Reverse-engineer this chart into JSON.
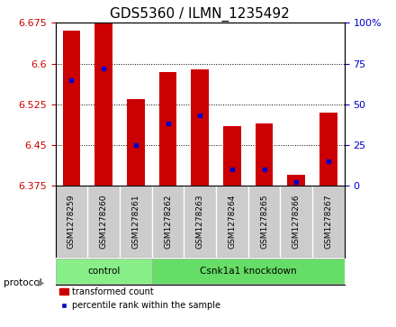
{
  "title": "GDS5360 / ILMN_1235492",
  "samples": [
    "GSM1278259",
    "GSM1278260",
    "GSM1278261",
    "GSM1278262",
    "GSM1278263",
    "GSM1278264",
    "GSM1278265",
    "GSM1278266",
    "GSM1278267"
  ],
  "transformed_counts": [
    6.66,
    6.675,
    6.535,
    6.585,
    6.59,
    6.485,
    6.49,
    6.395,
    6.51
  ],
  "percentile_ranks": [
    65,
    72,
    25,
    38,
    43,
    10,
    10,
    2,
    15
  ],
  "ylim_left": [
    6.375,
    6.675
  ],
  "ylim_right": [
    0,
    100
  ],
  "yticks_left": [
    6.375,
    6.45,
    6.525,
    6.6,
    6.675
  ],
  "yticks_right": [
    0,
    25,
    50,
    75,
    100
  ],
  "bar_color": "#cc0000",
  "dot_color": "#0000cc",
  "bar_width": 0.55,
  "groups": [
    {
      "label": "control",
      "indices": [
        0,
        1,
        2
      ],
      "color": "#88ee88"
    },
    {
      "label": "Csnk1a1 knockdown",
      "indices": [
        3,
        4,
        5,
        6,
        7,
        8
      ],
      "color": "#66dd66"
    }
  ],
  "protocol_label": "protocol",
  "legend_bar_label": "transformed count",
  "legend_dot_label": "percentile rank within the sample",
  "title_fontsize": 11,
  "tick_label_color_left": "#cc0000",
  "tick_label_color_right": "#0000cc",
  "base_value": 6.375,
  "sample_area_bg": "#cccccc",
  "fig_width": 4.4,
  "fig_height": 3.63,
  "dpi": 100
}
